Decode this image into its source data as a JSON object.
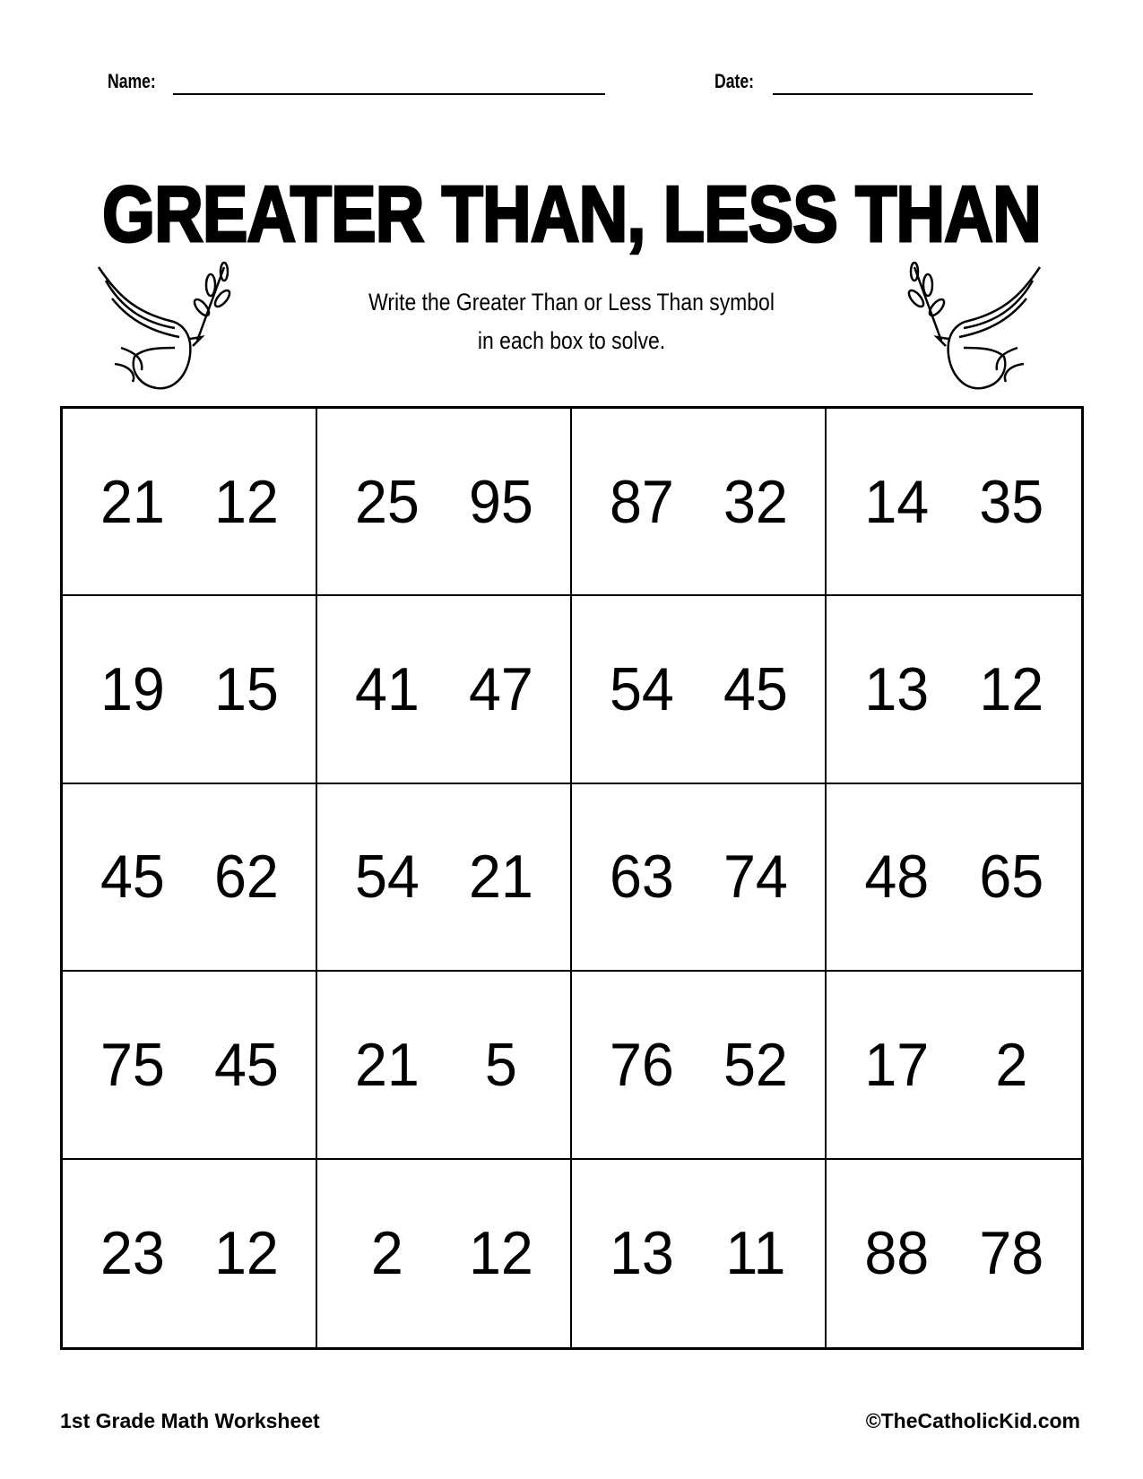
{
  "header": {
    "name_label": "Name:",
    "date_label": "Date:"
  },
  "title": "GREATER THAN, LESS THAN",
  "instructions": [
    "Write the Greater Than or Less Than symbol",
    "in each box to solve."
  ],
  "icons": {
    "left": "dove-with-olive-branch-icon",
    "right": "dove-with-olive-branch-icon"
  },
  "grid": [
    [
      [
        "21",
        "12"
      ],
      [
        "25",
        "95"
      ],
      [
        "87",
        "32"
      ],
      [
        "14",
        "35"
      ]
    ],
    [
      [
        "19",
        "15"
      ],
      [
        "41",
        "47"
      ],
      [
        "54",
        "45"
      ],
      [
        "13",
        "12"
      ]
    ],
    [
      [
        "45",
        "62"
      ],
      [
        "54",
        "21"
      ],
      [
        "63",
        "74"
      ],
      [
        "48",
        "65"
      ]
    ],
    [
      [
        "75",
        "45"
      ],
      [
        "21",
        "5"
      ],
      [
        "76",
        "52"
      ],
      [
        "17",
        "2"
      ]
    ],
    [
      [
        "23",
        "12"
      ],
      [
        "2",
        "12"
      ],
      [
        "13",
        "11"
      ],
      [
        "88",
        "78"
      ]
    ]
  ],
  "footer": {
    "left": "1st Grade Math Worksheet",
    "right": "©TheCatholicKid.com"
  }
}
